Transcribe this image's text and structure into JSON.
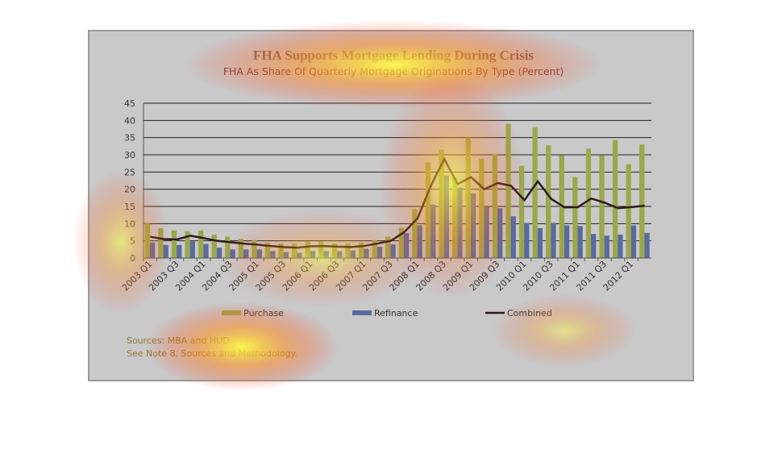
{
  "chart_data": {
    "type": "bar-line",
    "title": "FHA Supports Mortgage Lending During Crisis",
    "subtitle": "FHA As Share Of Quarterly Mortgage Originations By Type (Percent)",
    "categories": [
      "2003 Q1",
      null,
      "2003 Q3",
      null,
      "2004 Q1",
      null,
      "2004 Q3",
      null,
      "2005 Q1",
      null,
      "2005 Q3",
      null,
      "2006 Q1",
      null,
      "2006 Q3",
      null,
      "2007 Q1",
      null,
      "2007 Q3",
      null,
      "2008 Q1",
      null,
      "2008 Q3",
      null,
      "2009 Q1",
      null,
      "2009 Q3",
      null,
      "2010 Q1",
      null,
      "2010 Q3",
      null,
      "2011 Q1",
      null,
      "2011 Q3",
      null,
      "2012 Q1",
      null
    ],
    "series": [
      {
        "name": "Purchase",
        "color": "#9aa84a",
        "kind": "bar",
        "values": [
          10,
          8.7,
          8,
          7.8,
          8,
          6.8,
          6.2,
          5.6,
          5.2,
          4.5,
          4.2,
          4.2,
          4.8,
          4.8,
          4.3,
          4.3,
          4.5,
          5.2,
          6.2,
          8.8,
          14.2,
          27.8,
          31.5,
          23.5,
          35,
          28.8,
          30.2,
          39,
          26.8,
          38,
          32.8,
          29.8,
          23.5,
          31.8,
          29.8,
          34.3,
          27.3,
          33
        ]
      },
      {
        "name": "Refinance",
        "color": "#5a6aa0",
        "kind": "bar",
        "values": [
          4.5,
          3.8,
          3.8,
          4.8,
          4.1,
          3,
          2.5,
          2.5,
          2.5,
          2,
          1.7,
          1.5,
          2,
          2,
          2,
          2.2,
          2.7,
          3.3,
          4,
          7.2,
          9.5,
          15.5,
          24,
          20.5,
          18.8,
          14.8,
          14.5,
          12.1,
          10.2,
          8.7,
          10.2,
          9.5,
          9.3,
          7,
          6.5,
          6.8,
          9.5,
          7.3
        ]
      },
      {
        "name": "Combined",
        "color": "#2b1a1a",
        "kind": "line",
        "values": [
          6.2,
          5.5,
          5.4,
          6.5,
          5.8,
          5,
          4.6,
          4.2,
          3.9,
          3.5,
          3.2,
          3,
          3.4,
          3.5,
          3.3,
          3.2,
          3.5,
          4.2,
          5,
          7.5,
          11.5,
          21,
          28.8,
          21.5,
          23.5,
          20,
          21.8,
          21,
          16.8,
          22.3,
          17.2,
          14.7,
          14.8,
          17.3,
          16.1,
          14.5,
          14.8,
          15.2
        ]
      }
    ],
    "ylim": [
      0,
      45
    ],
    "yticks": [
      0,
      5,
      10,
      15,
      20,
      25,
      30,
      35,
      40,
      45
    ],
    "grid": true,
    "legend": "bottom",
    "sources": [
      "Sources:  MBA and HUD.",
      "See Note 8, Sources and Methodology."
    ]
  }
}
